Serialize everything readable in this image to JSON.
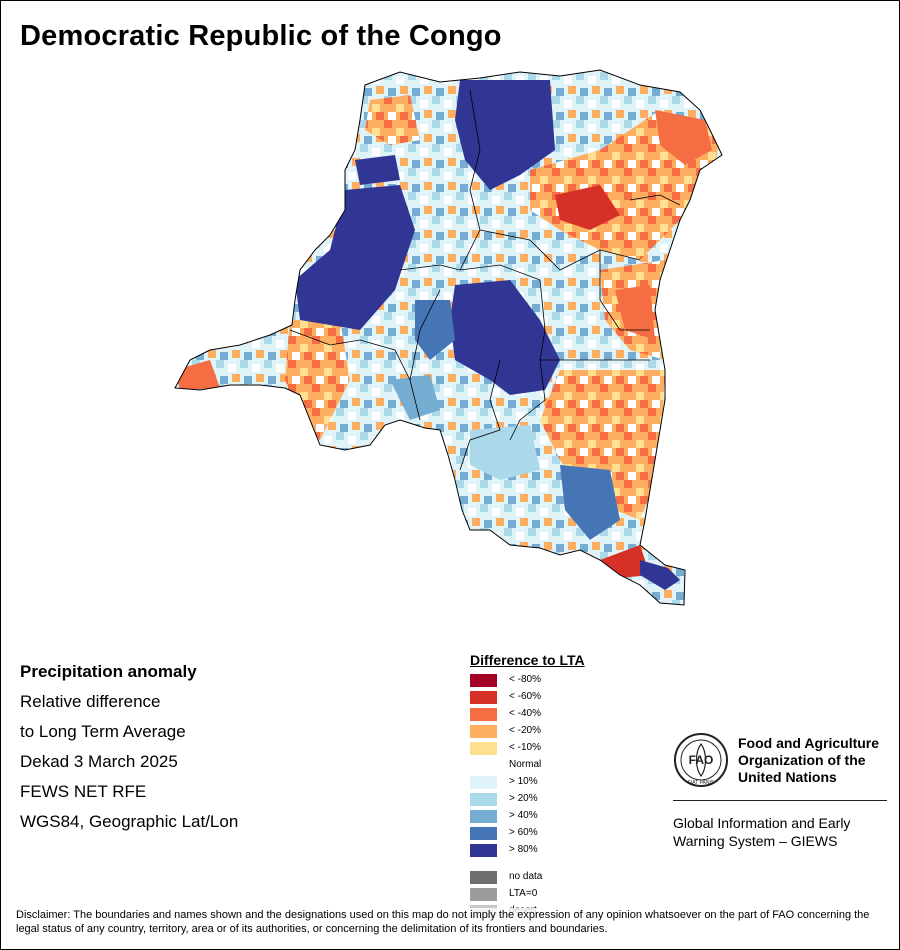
{
  "title": "Democratic Republic of the Congo",
  "info": {
    "heading": "Precipitation anomaly",
    "line1": "Relative difference",
    "line2": "to Long Term Average",
    "line3": "Dekad 3 March 2025",
    "line4": "FEWS NET RFE",
    "line5": "WGS84, Geographic Lat/Lon"
  },
  "legend": {
    "title": "Difference to LTA",
    "classes": [
      {
        "label": "< -80%",
        "color": "#a50026"
      },
      {
        "label": "< -60%",
        "color": "#d73027"
      },
      {
        "label": "< -40%",
        "color": "#f46d43"
      },
      {
        "label": "< -20%",
        "color": "#fdae61"
      },
      {
        "label": "< -10%",
        "color": "#fee090"
      },
      {
        "label": "Normal",
        "color": "#ffffff"
      },
      {
        "label": "> 10%",
        "color": "#e0f3f8"
      },
      {
        "label": "> 20%",
        "color": "#abd9e9"
      },
      {
        "label": "> 40%",
        "color": "#74add1"
      },
      {
        "label": "> 60%",
        "color": "#4575b4"
      },
      {
        "label": "> 80%",
        "color": "#313695"
      }
    ],
    "extra": [
      {
        "label": "no data",
        "color": "#6e6e6e"
      },
      {
        "label": "LTA=0",
        "color": "#9c9c9c"
      },
      {
        "label": "desert",
        "color": "#c8c8c8"
      }
    ]
  },
  "fao": {
    "logo_text": "FAO",
    "logo_motto": "FIAT PANIS",
    "name_line1": "Food and Agriculture",
    "name_line2": "Organization of the",
    "name_line3": "United Nations",
    "giews_line1": "Global Information and Early",
    "giews_line2": "Warning System – GIEWS"
  },
  "disclaimer": "Disclaimer: The boundaries and names shown and the designations used on this map do not imply the expression of any opinion whatsoever on the part of FAO concerning the legal status of any country, territory, area or of its authorities, or concerning the delimitation of its frontiers and boundaries.",
  "map_colors": {
    "dry_extreme": "#d73027",
    "dry_strong": "#f46d43",
    "dry_moderate": "#fdae61",
    "dry_light": "#fee090",
    "wet_light": "#e0f3f8",
    "wet_moderate": "#abd9e9",
    "wet_strong": "#74add1",
    "wet_very": "#4575b4",
    "wet_extreme": "#313695",
    "border": "#000000"
  }
}
